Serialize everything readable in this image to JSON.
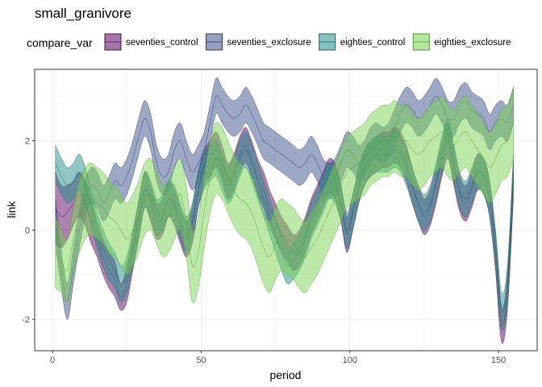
{
  "chart_data": {
    "type": "area",
    "subtype": "ribbon",
    "title": "small_granivore",
    "xlabel": "period",
    "ylabel": "link",
    "xlim": [
      -6,
      163
    ],
    "ylim": [
      -2.7,
      3.6
    ],
    "x_ticks": [
      0,
      50,
      100,
      150
    ],
    "y_ticks": [
      -2,
      0,
      2
    ],
    "grid": true,
    "legend": {
      "title": "compare_var",
      "position": "top"
    },
    "x": [
      1,
      3,
      5,
      7,
      9,
      11,
      13,
      15,
      17,
      19,
      21,
      23,
      25,
      27,
      29,
      31,
      33,
      35,
      37,
      39,
      41,
      43,
      45,
      47,
      49,
      51,
      53,
      55,
      57,
      59,
      61,
      63,
      65,
      67,
      69,
      71,
      73,
      75,
      77,
      79,
      81,
      83,
      85,
      87,
      89,
      91,
      93,
      95,
      97,
      99,
      101,
      103,
      105,
      107,
      109,
      111,
      113,
      115,
      117,
      119,
      121,
      123,
      125,
      127,
      129,
      131,
      133,
      135,
      137,
      139,
      141,
      143,
      145,
      147,
      149,
      151,
      153,
      155
    ],
    "series": [
      {
        "name": "seventies_control",
        "fill": "#6a1b6e",
        "line": "#4d0f52",
        "fill_opacity": 0.55,
        "mean": [
          0.5,
          0.3,
          0.4,
          0.6,
          0.8,
          0.6,
          0.2,
          -0.2,
          -0.6,
          -0.9,
          -1.1,
          -1.5,
          -1.2,
          -0.5,
          0.2,
          0.9,
          0.6,
          0.2,
          0.3,
          0.7,
          0.5,
          0.1,
          -0.2,
          0.1,
          0.9,
          1.4,
          1.6,
          1.8,
          1.5,
          1.1,
          1.3,
          1.7,
          1.9,
          1.6,
          1.2,
          0.9,
          0.5,
          0.2,
          -0.1,
          -0.3,
          -0.5,
          -0.4,
          -0.1,
          0.3,
          0.6,
          0.9,
          1.2,
          1.1,
          0.6,
          -0.1,
          0.4,
          1.0,
          1.4,
          1.6,
          1.7,
          1.8,
          1.8,
          1.9,
          1.8,
          1.5,
          1.0,
          0.6,
          0.3,
          0.5,
          1.0,
          1.6,
          2.0,
          1.4,
          0.8,
          0.6,
          0.9,
          1.3,
          1.2,
          0.7,
          -0.5,
          -2.1,
          -1.4,
          1.1
        ],
        "lower": [
          -0.3,
          -0.4,
          -0.2,
          0.1,
          0.3,
          0.1,
          -0.3,
          -0.6,
          -1.0,
          -1.3,
          -1.5,
          -1.8,
          -1.6,
          -0.9,
          -0.2,
          0.5,
          0.2,
          -0.2,
          -0.1,
          0.3,
          0.1,
          -0.3,
          -0.6,
          -0.3,
          0.5,
          1.0,
          1.2,
          1.4,
          1.1,
          0.7,
          0.9,
          1.3,
          1.5,
          1.2,
          0.8,
          0.5,
          0.1,
          -0.2,
          -0.5,
          -0.7,
          -0.9,
          -0.8,
          -0.5,
          -0.1,
          0.2,
          0.5,
          0.8,
          0.7,
          0.2,
          -0.5,
          0.0,
          0.6,
          1.0,
          1.2,
          1.3,
          1.4,
          1.4,
          1.5,
          1.4,
          1.1,
          0.6,
          0.2,
          -0.1,
          0.1,
          0.6,
          1.2,
          1.6,
          1.0,
          0.4,
          0.2,
          0.5,
          0.9,
          0.8,
          0.3,
          -0.9,
          -2.5,
          -1.8,
          0.7
        ],
        "upper": [
          1.3,
          1.0,
          1.0,
          1.1,
          1.3,
          1.1,
          0.7,
          0.2,
          -0.2,
          -0.5,
          -0.7,
          -1.2,
          -0.8,
          -0.1,
          0.6,
          1.3,
          1.0,
          0.6,
          0.7,
          1.1,
          0.9,
          0.5,
          0.2,
          0.5,
          1.3,
          1.8,
          2.0,
          2.2,
          1.9,
          1.5,
          1.7,
          2.1,
          2.3,
          2.0,
          1.6,
          1.3,
          0.9,
          0.6,
          0.3,
          0.1,
          -0.1,
          0.0,
          0.3,
          0.7,
          1.0,
          1.3,
          1.6,
          1.5,
          1.0,
          0.3,
          0.8,
          1.4,
          1.8,
          2.0,
          2.1,
          2.2,
          2.2,
          2.3,
          2.2,
          1.9,
          1.4,
          1.0,
          0.7,
          0.9,
          1.4,
          2.0,
          2.4,
          1.8,
          1.2,
          1.0,
          1.3,
          1.7,
          1.6,
          1.1,
          -0.1,
          -1.7,
          -1.0,
          1.5
        ]
      },
      {
        "name": "seventies_exclosure",
        "fill": "#3b528b",
        "line": "#26386a",
        "fill_opacity": 0.5,
        "mean": [
          0.2,
          -0.9,
          -1.6,
          -0.8,
          0.0,
          0.7,
          1.0,
          0.9,
          0.6,
          0.8,
          1.1,
          1.0,
          1.2,
          1.6,
          2.1,
          2.5,
          2.2,
          1.5,
          1.2,
          1.3,
          1.8,
          2.0,
          1.6,
          1.3,
          1.5,
          1.8,
          2.4,
          3.0,
          2.8,
          2.6,
          2.5,
          2.6,
          2.8,
          2.6,
          2.3,
          2.0,
          1.9,
          1.8,
          1.7,
          1.6,
          1.5,
          1.4,
          1.5,
          1.7,
          1.5,
          1.2,
          1.1,
          1.2,
          1.5,
          1.8,
          1.7,
          1.5,
          1.6,
          1.9,
          2.0,
          1.9,
          2.0,
          2.3,
          2.6,
          2.8,
          2.7,
          2.5,
          2.6,
          2.8,
          3.0,
          2.8,
          2.5,
          2.5,
          2.8,
          2.9,
          2.7,
          2.6,
          2.5,
          2.2,
          2.4,
          2.5,
          2.4,
          2.8
        ],
        "lower": [
          -0.3,
          -1.3,
          -2.0,
          -1.2,
          -0.4,
          0.3,
          0.6,
          0.5,
          0.2,
          0.4,
          0.7,
          0.6,
          0.8,
          1.2,
          1.7,
          2.1,
          1.8,
          1.1,
          0.8,
          0.9,
          1.4,
          1.6,
          1.2,
          0.9,
          1.1,
          1.4,
          2.0,
          2.6,
          2.4,
          2.2,
          2.1,
          2.2,
          2.4,
          2.2,
          1.9,
          1.6,
          1.5,
          1.4,
          1.3,
          1.2,
          1.1,
          1.0,
          1.1,
          1.3,
          1.1,
          0.8,
          0.7,
          0.8,
          1.1,
          1.4,
          1.3,
          1.1,
          1.2,
          1.5,
          1.6,
          1.5,
          1.6,
          1.9,
          2.2,
          2.4,
          2.3,
          2.1,
          2.2,
          2.4,
          2.6,
          2.4,
          2.1,
          2.1,
          2.4,
          2.5,
          2.3,
          2.2,
          2.1,
          1.8,
          2.0,
          2.1,
          2.0,
          2.4
        ],
        "upper": [
          0.7,
          -0.5,
          -1.2,
          -0.4,
          0.4,
          1.1,
          1.4,
          1.3,
          1.0,
          1.2,
          1.5,
          1.4,
          1.6,
          2.0,
          2.5,
          2.9,
          2.6,
          1.9,
          1.6,
          1.7,
          2.2,
          2.4,
          2.0,
          1.7,
          1.9,
          2.2,
          2.8,
          3.4,
          3.2,
          3.0,
          2.9,
          3.0,
          3.2,
          3.0,
          2.7,
          2.4,
          2.3,
          2.2,
          2.1,
          2.0,
          1.9,
          1.8,
          1.9,
          2.1,
          1.9,
          1.6,
          1.5,
          1.6,
          1.9,
          2.2,
          2.1,
          1.9,
          2.0,
          2.3,
          2.4,
          2.3,
          2.4,
          2.7,
          3.0,
          3.2,
          3.1,
          2.9,
          3.0,
          3.2,
          3.4,
          3.2,
          2.9,
          2.9,
          3.2,
          3.3,
          3.1,
          3.0,
          2.9,
          2.6,
          2.8,
          2.9,
          2.8,
          3.2
        ]
      },
      {
        "name": "eighties_control",
        "fill": "#21908c",
        "line": "#15605d",
        "fill_opacity": 0.5,
        "mean": [
          1.5,
          1.2,
          1.0,
          1.1,
          1.3,
          1.0,
          0.5,
          0.0,
          -0.4,
          -0.7,
          -0.9,
          -1.2,
          -1.0,
          -0.4,
          0.3,
          0.9,
          0.7,
          0.3,
          0.4,
          0.7,
          0.6,
          0.2,
          -0.1,
          0.2,
          0.9,
          1.3,
          1.5,
          1.6,
          1.3,
          1.0,
          1.2,
          1.6,
          1.8,
          1.5,
          1.1,
          0.7,
          0.3,
          -0.1,
          -0.5,
          -0.8,
          -0.7,
          -0.5,
          -0.2,
          0.2,
          0.5,
          0.8,
          1.1,
          1.0,
          0.6,
          0.0,
          0.4,
          1.0,
          1.4,
          1.6,
          1.7,
          1.7,
          1.7,
          1.8,
          1.7,
          1.4,
          1.0,
          0.6,
          0.4,
          0.6,
          1.1,
          1.7,
          2.1,
          1.5,
          0.9,
          0.7,
          1.0,
          1.3,
          1.2,
          0.7,
          -0.4,
          -1.8,
          -1.2,
          1.3
        ],
        "lower": [
          1.1,
          0.8,
          0.6,
          0.7,
          0.9,
          0.6,
          0.1,
          -0.4,
          -0.8,
          -1.1,
          -1.3,
          -1.6,
          -1.4,
          -0.8,
          -0.1,
          0.5,
          0.3,
          -0.1,
          0.0,
          0.3,
          0.2,
          -0.2,
          -0.5,
          -0.2,
          0.5,
          0.9,
          1.1,
          1.2,
          0.9,
          0.6,
          0.8,
          1.2,
          1.4,
          1.1,
          0.7,
          0.3,
          -0.1,
          -0.5,
          -0.9,
          -1.2,
          -1.1,
          -0.9,
          -0.6,
          -0.2,
          0.1,
          0.4,
          0.7,
          0.6,
          0.2,
          -0.4,
          0.0,
          0.6,
          1.0,
          1.2,
          1.3,
          1.3,
          1.3,
          1.4,
          1.3,
          1.0,
          0.6,
          0.2,
          0.0,
          0.2,
          0.7,
          1.3,
          1.7,
          1.1,
          0.5,
          0.3,
          0.6,
          0.9,
          0.8,
          0.3,
          -0.8,
          -2.2,
          -1.6,
          0.9
        ],
        "upper": [
          1.9,
          1.6,
          1.4,
          1.5,
          1.7,
          1.4,
          0.9,
          0.4,
          0.0,
          -0.3,
          -0.5,
          -0.8,
          -0.6,
          0.0,
          0.7,
          1.3,
          1.1,
          0.7,
          0.8,
          1.1,
          1.0,
          0.6,
          0.3,
          0.6,
          1.3,
          1.7,
          1.9,
          2.0,
          1.7,
          1.4,
          1.6,
          2.0,
          2.2,
          1.9,
          1.5,
          1.1,
          0.7,
          0.3,
          -0.1,
          -0.4,
          -0.3,
          -0.1,
          0.2,
          0.6,
          0.9,
          1.2,
          1.5,
          1.4,
          1.0,
          0.4,
          0.8,
          1.4,
          1.8,
          2.0,
          2.1,
          2.1,
          2.1,
          2.2,
          2.1,
          1.8,
          1.4,
          1.0,
          0.8,
          1.0,
          1.5,
          2.1,
          2.5,
          1.9,
          1.3,
          1.1,
          1.4,
          1.7,
          1.6,
          1.1,
          0.0,
          -1.4,
          -0.8,
          1.7
        ]
      },
      {
        "name": "eighties_exclosure",
        "fill": "#7ad151",
        "line": "#4e9a2f",
        "fill_opacity": 0.5,
        "mean": [
          -0.5,
          -0.7,
          -0.9,
          -0.2,
          0.3,
          0.6,
          0.7,
          0.6,
          0.5,
          0.3,
          0.2,
          0.0,
          -0.2,
          0.0,
          0.3,
          0.7,
          0.8,
          0.5,
          0.2,
          0.3,
          0.6,
          0.8,
          0.2,
          -0.8,
          -0.5,
          0.4,
          1.2,
          1.6,
          1.5,
          1.2,
          0.9,
          0.7,
          0.6,
          0.4,
          0.0,
          -0.4,
          -0.6,
          -0.3,
          -0.1,
          -0.2,
          -0.3,
          -0.5,
          -0.6,
          -0.4,
          -0.2,
          0.1,
          0.4,
          0.7,
          1.0,
          1.3,
          1.4,
          1.5,
          1.6,
          1.8,
          1.9,
          2.0,
          2.0,
          2.1,
          2.0,
          2.0,
          1.8,
          1.7,
          1.8,
          2.0,
          2.1,
          2.2,
          2.0,
          1.9,
          2.1,
          2.2,
          2.0,
          1.8,
          1.6,
          1.4,
          1.6,
          1.9,
          2.0,
          2.4
        ],
        "lower": [
          -1.3,
          -1.4,
          -1.6,
          -0.9,
          -0.5,
          -0.2,
          -0.1,
          -0.2,
          -0.3,
          -0.5,
          -0.6,
          -0.8,
          -1.0,
          -0.8,
          -0.5,
          -0.1,
          0.0,
          -0.3,
          -0.6,
          -0.5,
          -0.2,
          0.0,
          -0.6,
          -1.6,
          -1.3,
          -0.4,
          0.4,
          0.8,
          0.7,
          0.4,
          0.1,
          -0.1,
          -0.2,
          -0.4,
          -0.8,
          -1.2,
          -1.4,
          -1.1,
          -0.9,
          -1.0,
          -1.1,
          -1.3,
          -1.4,
          -1.2,
          -1.0,
          -0.7,
          -0.4,
          -0.1,
          0.2,
          0.5,
          0.6,
          0.7,
          0.8,
          1.0,
          1.1,
          1.2,
          1.2,
          1.3,
          1.2,
          1.2,
          1.0,
          0.9,
          1.0,
          1.2,
          1.3,
          1.4,
          1.2,
          1.1,
          1.3,
          1.4,
          1.2,
          1.0,
          0.8,
          0.6,
          0.8,
          1.1,
          1.2,
          1.6
        ],
        "upper": [
          0.3,
          0.0,
          -0.2,
          0.5,
          1.1,
          1.4,
          1.5,
          1.4,
          1.3,
          1.1,
          1.0,
          0.8,
          0.6,
          0.8,
          1.1,
          1.5,
          1.6,
          1.3,
          1.0,
          1.1,
          1.4,
          1.6,
          1.0,
          0.0,
          0.3,
          1.2,
          2.0,
          2.4,
          2.3,
          2.0,
          1.7,
          1.5,
          1.4,
          1.2,
          0.8,
          0.4,
          0.2,
          0.5,
          0.7,
          0.6,
          0.5,
          0.3,
          0.2,
          0.4,
          0.6,
          0.9,
          1.2,
          1.5,
          1.8,
          2.1,
          2.2,
          2.3,
          2.4,
          2.6,
          2.7,
          2.8,
          2.8,
          2.9,
          2.8,
          2.8,
          2.6,
          2.5,
          2.6,
          2.8,
          2.9,
          3.0,
          2.8,
          2.7,
          2.9,
          3.0,
          2.8,
          2.6,
          2.4,
          2.2,
          2.4,
          2.7,
          2.8,
          3.2
        ]
      }
    ]
  }
}
